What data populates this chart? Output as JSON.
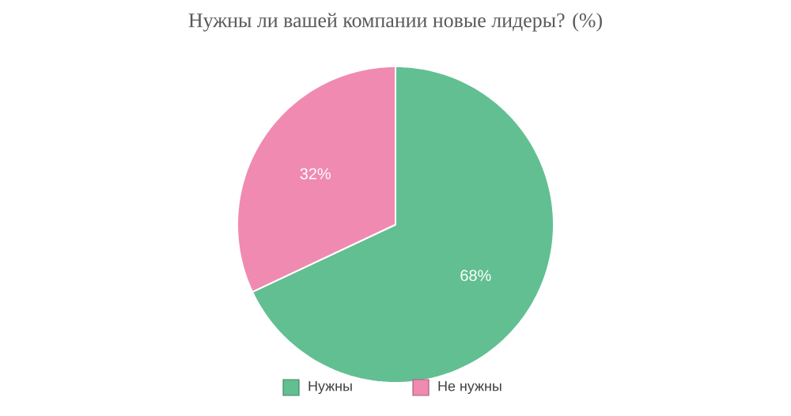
{
  "chart_data": {
    "type": "pie",
    "title": "Нужны ли вашей компании новые лидеры? (%)",
    "categories": [
      "Нужны",
      "Не нужны"
    ],
    "values": [
      68,
      32
    ],
    "colors": [
      "#62bf91",
      "#f08ab0"
    ],
    "value_labels": [
      "68%",
      "32%"
    ],
    "legend": "bottom"
  }
}
